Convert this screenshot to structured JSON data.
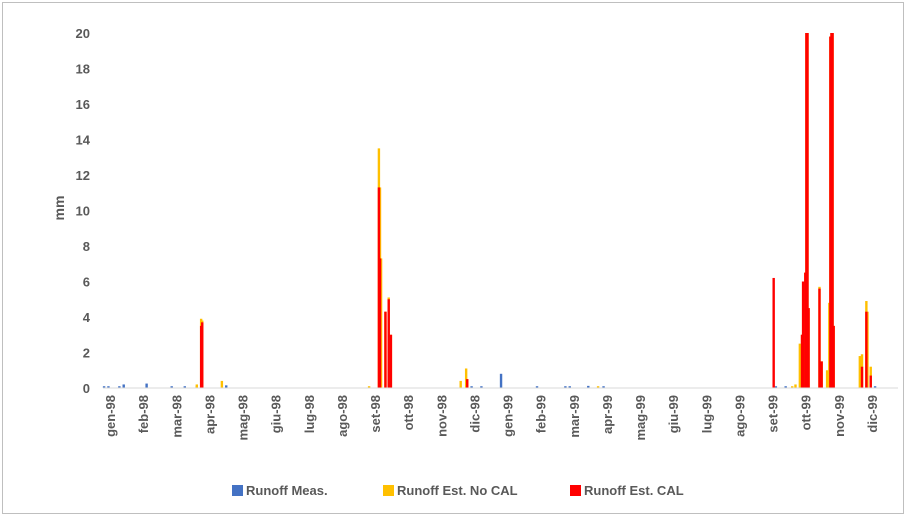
{
  "chart_data": {
    "type": "bar",
    "title": "",
    "xlabel": "",
    "ylabel": "mm",
    "ylim": [
      0,
      20
    ],
    "yticks": [
      0,
      2,
      4,
      6,
      8,
      10,
      12,
      14,
      16,
      18,
      20
    ],
    "x_start": "1998-01-01",
    "x_end": "1999-12-31",
    "x_tick_labels": [
      "gen-98",
      "feb-98",
      "mar-98",
      "apr-98",
      "mag-98",
      "giu-98",
      "lug-98",
      "ago-98",
      "set-98",
      "ott-98",
      "nov-98",
      "dic-98",
      "gen-99",
      "feb-99",
      "mar-99",
      "apr-99",
      "mag-99",
      "giu-99",
      "lug-99",
      "ago-99",
      "set-99",
      "ott-99",
      "nov-99",
      "dic-99"
    ],
    "grid": false,
    "legend_position": "bottom",
    "series": [
      {
        "name": "Runoff Meas.",
        "color": "#4472C4",
        "points": [
          [
            "1998-01-02",
            0.1
          ],
          [
            "1998-01-06",
            0.1
          ],
          [
            "1998-01-16",
            0.1
          ],
          [
            "1998-01-20",
            0.2
          ],
          [
            "1998-02-10",
            0.25
          ],
          [
            "1998-03-05",
            0.1
          ],
          [
            "1998-03-17",
            0.1
          ],
          [
            "1998-03-28",
            0.1
          ],
          [
            "1998-04-24",
            0.15
          ],
          [
            "1998-12-05",
            0.1
          ],
          [
            "1998-12-14",
            0.1
          ],
          [
            "1999-01-01",
            0.8
          ],
          [
            "1999-02-03",
            0.1
          ],
          [
            "1999-03-01",
            0.1
          ],
          [
            "1999-03-05",
            0.1
          ],
          [
            "1999-03-22",
            0.12
          ],
          [
            "1999-04-05",
            0.1
          ],
          [
            "1999-09-10",
            0.1
          ],
          [
            "1999-09-19",
            0.1
          ],
          [
            "1999-12-10",
            0.1
          ]
        ]
      },
      {
        "name": "Runoff Est. No CAL",
        "color": "#FFC000",
        "points": [
          [
            "1998-03-28",
            0.2
          ],
          [
            "1998-04-01",
            3.9
          ],
          [
            "1998-04-02",
            3.8
          ],
          [
            "1998-04-20",
            0.4
          ],
          [
            "1998-09-02",
            0.1
          ],
          [
            "1998-09-11",
            13.5
          ],
          [
            "1998-09-12",
            11.3
          ],
          [
            "1998-09-13",
            7.3
          ],
          [
            "1998-09-17",
            4.3
          ],
          [
            "1998-09-20",
            5.1
          ],
          [
            "1998-09-22",
            3.0
          ],
          [
            "1998-11-25",
            0.4
          ],
          [
            "1998-11-30",
            1.1
          ],
          [
            "1998-12-01",
            0.5
          ],
          [
            "1999-03-31",
            0.1
          ],
          [
            "1999-09-25",
            0.1
          ],
          [
            "1999-09-28",
            0.2
          ],
          [
            "1999-10-02",
            2.5
          ],
          [
            "1999-10-04",
            3.0
          ],
          [
            "1999-10-05",
            6.0
          ],
          [
            "1999-10-07",
            6.5
          ],
          [
            "1999-10-08",
            20.0
          ],
          [
            "1999-10-09",
            20.0
          ],
          [
            "1999-10-10",
            4.5
          ],
          [
            "1999-10-20",
            5.7
          ],
          [
            "1999-10-22",
            1.5
          ],
          [
            "1999-10-27",
            1.0
          ],
          [
            "1999-10-29",
            4.8
          ],
          [
            "1999-10-30",
            19.8
          ],
          [
            "1999-10-31",
            20.0
          ],
          [
            "1999-11-01",
            20.0
          ],
          [
            "1999-11-02",
            3.5
          ],
          [
            "1999-11-26",
            1.8
          ],
          [
            "1999-11-28",
            1.9
          ],
          [
            "1999-12-02",
            4.9
          ],
          [
            "1999-12-03",
            4.3
          ],
          [
            "1999-12-06",
            1.2
          ]
        ]
      },
      {
        "name": "Runoff Est. CAL",
        "color": "#FF0000",
        "points": [
          [
            "1998-04-01",
            3.5
          ],
          [
            "1998-04-02",
            3.7
          ],
          [
            "1998-09-11",
            11.3
          ],
          [
            "1998-09-12",
            7.3
          ],
          [
            "1998-09-17",
            4.3
          ],
          [
            "1998-09-20",
            5.0
          ],
          [
            "1998-09-22",
            3.0
          ],
          [
            "1998-12-01",
            0.5
          ],
          [
            "1999-09-08",
            6.2
          ],
          [
            "1999-10-04",
            3.0
          ],
          [
            "1999-10-05",
            6.0
          ],
          [
            "1999-10-07",
            6.5
          ],
          [
            "1999-10-08",
            20.0
          ],
          [
            "1999-10-09",
            20.0
          ],
          [
            "1999-10-10",
            4.5
          ],
          [
            "1999-10-20",
            5.6
          ],
          [
            "1999-10-22",
            1.5
          ],
          [
            "1999-10-30",
            19.8
          ],
          [
            "1999-10-31",
            20.0
          ],
          [
            "1999-11-01",
            20.0
          ],
          [
            "1999-11-02",
            3.5
          ],
          [
            "1999-11-28",
            1.2
          ],
          [
            "1999-12-02",
            4.3
          ],
          [
            "1999-12-06",
            0.7
          ]
        ]
      }
    ]
  }
}
